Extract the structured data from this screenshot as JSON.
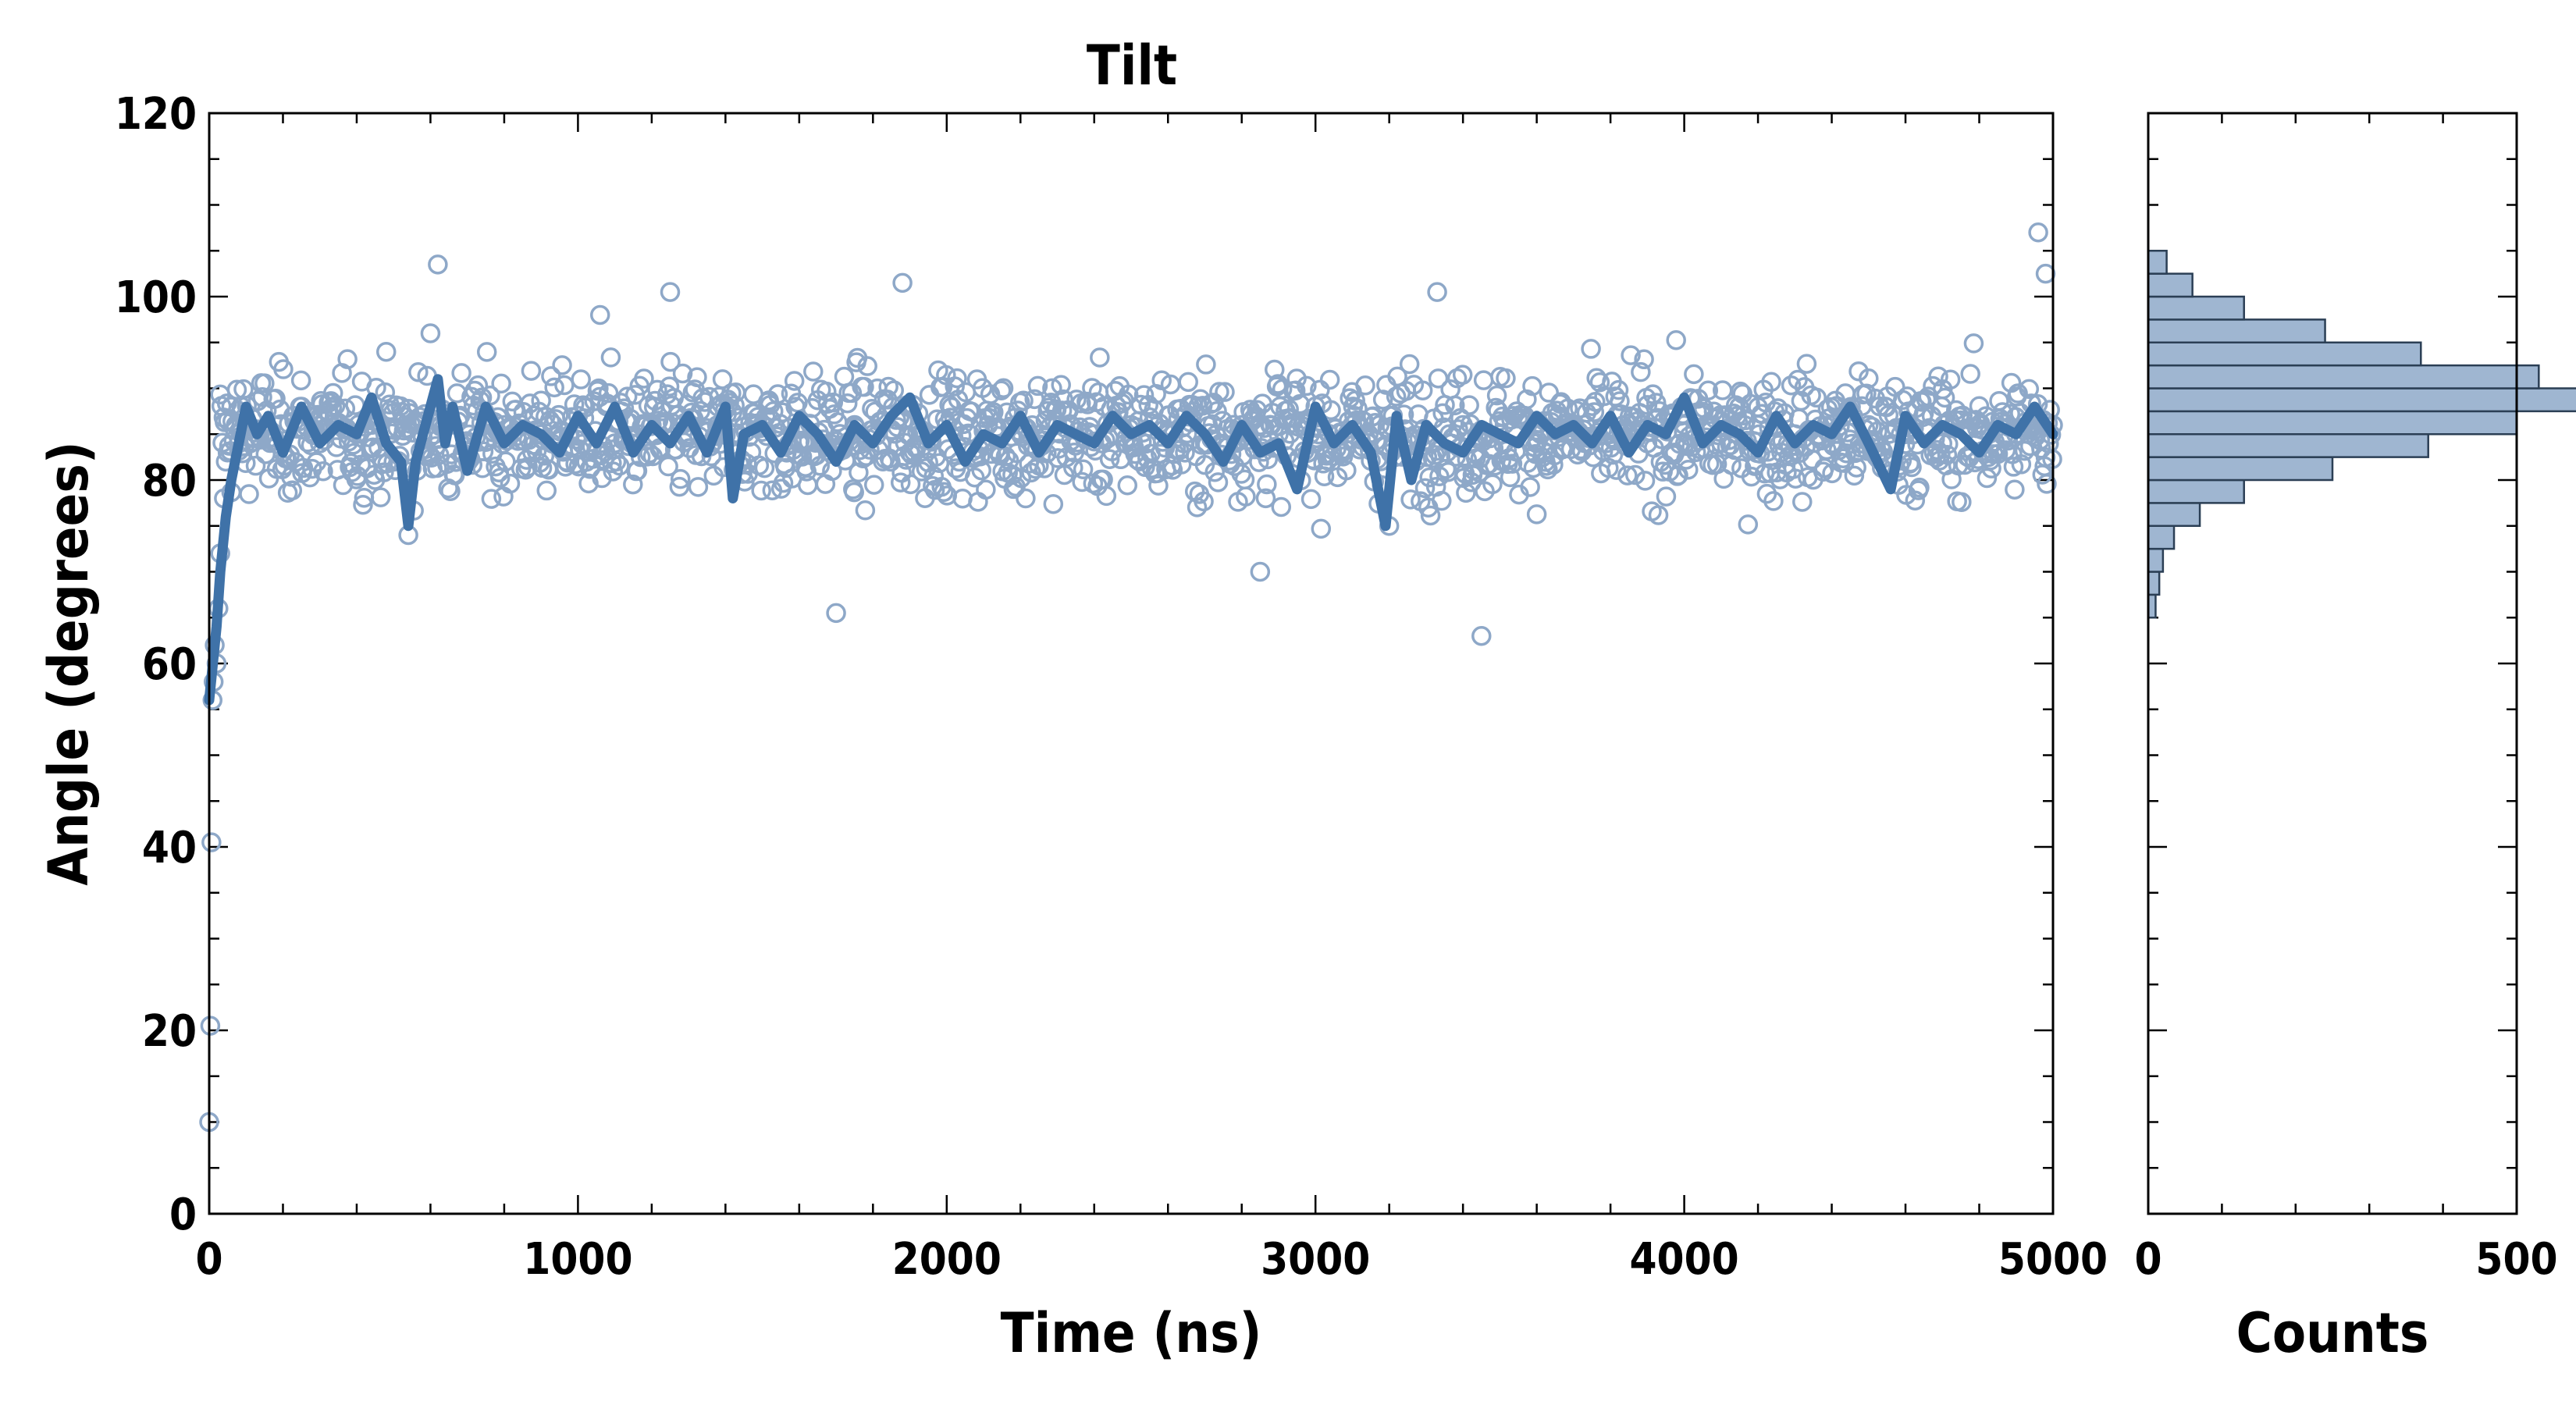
{
  "chart_data": [
    {
      "type": "scatter",
      "title": "Tilt",
      "xlabel": "Time (ns)",
      "ylabel": "Angle (degrees)",
      "xlim": [
        0,
        5000
      ],
      "ylim": [
        0,
        120
      ],
      "xticks": [
        "0",
        "1000",
        "2000",
        "3000",
        "4000",
        "5000"
      ],
      "yticks": [
        "0",
        "20",
        "40",
        "60",
        "80",
        "100",
        "120"
      ],
      "grid": false,
      "marker": "open-circle",
      "colors": {
        "points": "#8ea8c8",
        "running_average": "#3f72a8"
      },
      "series": [
        {
          "style": "points",
          "description_of_distribution": "~1700 samples, one every ~3 ns; mean 85, spread roughly 66-103",
          "x": [
            0,
            3,
            6,
            9,
            12,
            15,
            20,
            25,
            30,
            40,
            50,
            60,
            80,
            100,
            150,
            200,
            250,
            300,
            350,
            400,
            450,
            500,
            540,
            600,
            620,
            700,
            740,
            800,
            900,
            1000,
            1060,
            1100,
            1200,
            1250,
            1300,
            1400,
            1500,
            1600,
            1700,
            1750,
            1800,
            1880,
            1900,
            2000,
            2100,
            2200,
            2300,
            2400,
            2500,
            2600,
            2700,
            2800,
            2850,
            2900,
            3000,
            3100,
            3200,
            3300,
            3330,
            3400,
            3450,
            3500,
            3600,
            3700,
            3800,
            3900,
            4000,
            4100,
            4200,
            4300,
            4400,
            4500,
            4600,
            4700,
            4800,
            4900,
            4960,
            4980,
            5000
          ],
          "y": [
            10,
            20.5,
            40.5,
            56,
            58,
            62,
            60,
            66,
            72,
            78,
            83,
            88,
            84,
            86,
            85,
            83,
            88,
            84,
            86,
            85,
            80,
            82,
            74,
            96,
            103.5,
            84,
            89,
            86,
            85,
            87,
            98,
            84,
            86,
            100.5,
            85,
            85,
            86,
            84,
            65.5,
            86,
            85,
            101.5,
            83,
            86,
            84,
            85,
            86,
            85,
            86,
            85,
            84,
            86,
            70,
            85,
            84,
            86,
            75,
            85,
            100.5,
            86,
            63,
            85,
            84,
            86,
            85,
            84,
            86,
            84,
            86,
            85,
            84,
            86,
            85,
            84,
            86,
            85,
            107,
            102.5,
            86
          ]
        },
        {
          "style": "running_average",
          "x": [
            0,
            10,
            20,
            30,
            45,
            60,
            80,
            100,
            130,
            160,
            200,
            250,
            300,
            350,
            400,
            440,
            480,
            520,
            540,
            560,
            600,
            620,
            640,
            660,
            700,
            750,
            800,
            850,
            900,
            950,
            1000,
            1050,
            1100,
            1150,
            1200,
            1250,
            1300,
            1350,
            1400,
            1420,
            1450,
            1500,
            1550,
            1600,
            1650,
            1700,
            1750,
            1800,
            1850,
            1900,
            1950,
            2000,
            2050,
            2100,
            2150,
            2200,
            2250,
            2300,
            2350,
            2400,
            2450,
            2500,
            2550,
            2600,
            2650,
            2700,
            2750,
            2800,
            2850,
            2900,
            2950,
            3000,
            3050,
            3100,
            3150,
            3190,
            3220,
            3260,
            3300,
            3350,
            3400,
            3450,
            3500,
            3550,
            3600,
            3650,
            3700,
            3750,
            3800,
            3850,
            3900,
            3950,
            4000,
            4050,
            4100,
            4150,
            4200,
            4250,
            4300,
            4350,
            4400,
            4450,
            4500,
            4560,
            4600,
            4650,
            4700,
            4750,
            4800,
            4850,
            4900,
            4950,
            5000
          ],
          "y": [
            56,
            60,
            64,
            70,
            76,
            80,
            84,
            88,
            85,
            87,
            83,
            88,
            84,
            86,
            85,
            89,
            84,
            82,
            75,
            82,
            88,
            91,
            84,
            88,
            81,
            88,
            84,
            86,
            85,
            83,
            87,
            84,
            88,
            83,
            86,
            84,
            87,
            83,
            88,
            78,
            85,
            86,
            83,
            87,
            85,
            82,
            86,
            84,
            87,
            89,
            84,
            86,
            82,
            85,
            84,
            87,
            83,
            86,
            85,
            84,
            87,
            85,
            86,
            84,
            87,
            85,
            82,
            86,
            83,
            84,
            79,
            88,
            84,
            86,
            83,
            75,
            87,
            80,
            86,
            84,
            83,
            86,
            85,
            84,
            87,
            85,
            86,
            84,
            87,
            83,
            86,
            85,
            89,
            84,
            86,
            85,
            83,
            87,
            84,
            86,
            85,
            88,
            84,
            79,
            87,
            84,
            86,
            85,
            83,
            86,
            85,
            88,
            85
          ]
        }
      ]
    },
    {
      "type": "bar",
      "orientation": "horizontal",
      "xlabel": "Counts",
      "xlim": [
        0,
        500
      ],
      "xticks": [
        "0",
        "500"
      ],
      "ylim": [
        0,
        120
      ],
      "bin_width": 2.5,
      "bins_lower_edges": [
        65,
        67.5,
        70,
        72.5,
        75,
        77.5,
        80,
        82.5,
        85,
        87.5,
        90,
        92.5,
        95,
        97.5,
        100,
        102.5
      ],
      "values": [
        10,
        15,
        20,
        35,
        70,
        130,
        250,
        380,
        500,
        620,
        530,
        370,
        240,
        130,
        60,
        25
      ],
      "colors": {
        "fill": "#9fb6d1",
        "edge": "#2b3f55"
      }
    }
  ]
}
